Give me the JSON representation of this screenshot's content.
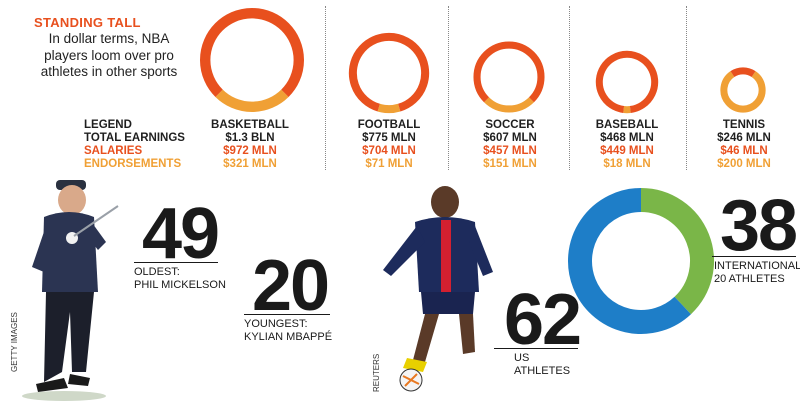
{
  "header": {
    "title": "STANDING TALL",
    "subtitle": "In dollar terms, NBA players loom over pro athletes in other sports"
  },
  "legend": {
    "heading": "LEGEND",
    "total": "TOTAL EARNINGS",
    "salaries": "SALARIES",
    "endorsements": "ENDORSEMENTS"
  },
  "colors": {
    "salaries": "#e8501e",
    "endorsements": "#f0a035",
    "us": "#1e7ec8",
    "international": "#7ab648"
  },
  "sports": [
    {
      "name": "BASKETBALL",
      "total": "$1.3 BLN",
      "salaries": "$972 MLN",
      "endorsements": "$321 MLN"
    },
    {
      "name": "FOOTBALL",
      "total": "$775 MLN",
      "salaries": "$704 MLN",
      "endorsements": "$71 MLN"
    },
    {
      "name": "SOCCER",
      "total": "$607 MLN",
      "salaries": "$457 MLN",
      "endorsements": "$151 MLN"
    },
    {
      "name": "BASEBALL",
      "total": "$468 MLN",
      "salaries": "$449 MLN",
      "endorsements": "$18 MLN"
    },
    {
      "name": "TENNIS",
      "total": "$246 MLN",
      "salaries": "$46 MLN",
      "endorsements": "$200 MLN"
    }
  ],
  "ages": {
    "oldest_value": "49",
    "oldest_caption_1": "OLDEST:",
    "oldest_caption_2": "PHIL MICKELSON",
    "youngest_value": "20",
    "youngest_caption_1": "YOUNGEST:",
    "youngest_caption_2": "KYLIAN MBAPPÉ"
  },
  "athletes": {
    "us_value": "62",
    "us_caption_1": "US",
    "us_caption_2": "ATHLETES",
    "intl_value": "38",
    "intl_caption_1": "INTERNATIONAL",
    "intl_caption_2": "20 ATHLETES"
  },
  "credits": {
    "left": "GETTY IMAGES",
    "right": "REUTERS"
  },
  "chart_data": [
    {
      "type": "pie",
      "style": "donut",
      "units": "USD millions",
      "categories": [
        "BASKETBALL",
        "FOOTBALL",
        "SOCCER",
        "BASEBALL",
        "TENNIS"
      ],
      "series": [
        {
          "name": "SALARIES",
          "values": [
            972,
            704,
            457,
            449,
            46
          ]
        },
        {
          "name": "ENDORSEMENTS",
          "values": [
            321,
            71,
            151,
            18,
            200
          ]
        }
      ],
      "totals": [
        1300,
        775,
        607,
        468,
        246
      ]
    },
    {
      "type": "pie",
      "style": "donut",
      "categories": [
        "US",
        "INTERNATIONAL"
      ],
      "values": [
        62,
        38
      ]
    }
  ]
}
